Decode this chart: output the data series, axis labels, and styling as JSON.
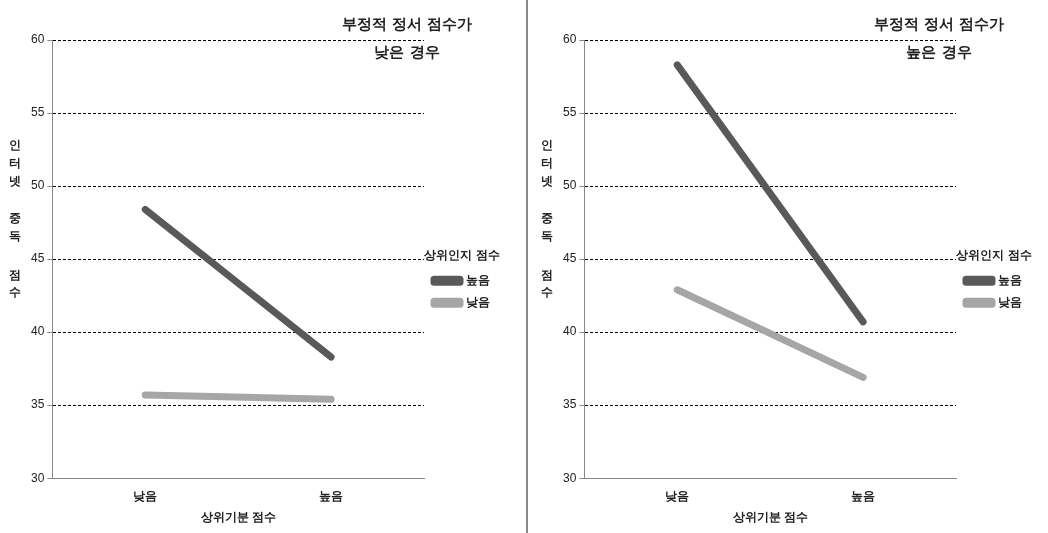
{
  "chart_data": [
    {
      "type": "line",
      "title": "부정적 정서 점수가 낮은 경우",
      "xlabel": "상위기분 점수",
      "ylabel": "인터넷 중독 점수",
      "legend_title": "상위인지 점수",
      "categories": [
        "낮음",
        "높음"
      ],
      "series": [
        {
          "name": "높음",
          "color": "#595959",
          "values": [
            48.4,
            38.3
          ]
        },
        {
          "name": "낮음",
          "color": "#a6a6a6",
          "values": [
            35.7,
            35.4
          ]
        }
      ],
      "ylim": [
        30,
        60
      ],
      "yticks": [
        30,
        35,
        40,
        45,
        50,
        55,
        60
      ],
      "grid": "y",
      "legend": "right",
      "marker": "none",
      "line_style": "solid"
    },
    {
      "type": "line",
      "title": "부정적 정서 점수가 높은 경우",
      "xlabel": "상위기분 점수",
      "ylabel": "인터넷 중독 점수",
      "legend_title": "상위인지 점수",
      "categories": [
        "낮음",
        "높음"
      ],
      "series": [
        {
          "name": "높음",
          "color": "#595959",
          "values": [
            58.3,
            40.7
          ]
        },
        {
          "name": "낮음",
          "color": "#a6a6a6",
          "values": [
            42.9,
            36.9
          ]
        }
      ],
      "ylim": [
        30,
        60
      ],
      "yticks": [
        30,
        35,
        40,
        45,
        50,
        55,
        60
      ],
      "grid": "y",
      "legend": "right",
      "marker": "none",
      "line_style": "solid"
    }
  ]
}
